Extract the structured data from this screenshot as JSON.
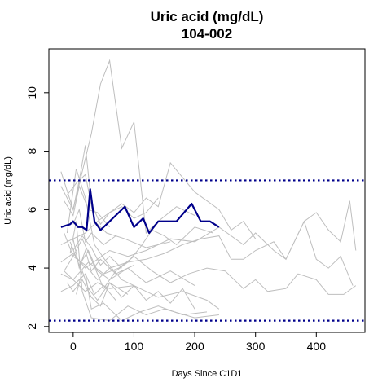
{
  "chart_data": {
    "type": "line",
    "title": "Uric acid (mg/dL)",
    "subtitle": "104-002",
    "xlabel": "Days Since C1D1",
    "ylabel": "Uric acid (mg/dL)",
    "xlim": [
      -40,
      480
    ],
    "ylim": [
      1.8,
      11.5
    ],
    "xticks": [
      0,
      100,
      200,
      300,
      400
    ],
    "yticks": [
      2,
      4,
      6,
      8,
      10
    ],
    "grid": false,
    "reference_lines": [
      {
        "y": 7.0,
        "style": "dotted",
        "color": "#00008b"
      },
      {
        "y": 2.2,
        "style": "dotted",
        "color": "#00008b"
      }
    ],
    "colors": {
      "highlight": "#00008b",
      "background_series": "#bebebe",
      "reference": "#00008b"
    },
    "highlight_series": {
      "x": [
        -20,
        -5,
        0,
        8,
        15,
        22,
        28,
        35,
        45,
        55,
        70,
        85,
        100,
        115,
        125,
        140,
        170,
        195,
        210,
        225,
        240
      ],
      "y": [
        5.4,
        5.5,
        5.6,
        5.4,
        5.4,
        5.3,
        6.7,
        5.6,
        5.3,
        5.5,
        5.8,
        6.1,
        5.4,
        5.7,
        5.2,
        5.6,
        5.6,
        6.2,
        5.6,
        5.6,
        5.4
      ]
    },
    "background_series": [
      {
        "x": [
          -20,
          0,
          30,
          45,
          60,
          80,
          100,
          120,
          140,
          170,
          200
        ],
        "y": [
          7.3,
          6.0,
          8.6,
          10.3,
          11.1,
          8.1,
          9.0,
          5.2,
          5.6,
          6.1,
          5.8
        ]
      },
      {
        "x": [
          -20,
          0,
          20,
          40,
          60,
          80,
          100,
          120,
          140,
          160,
          200,
          240,
          260,
          280,
          300
        ],
        "y": [
          4.8,
          5.0,
          5.2,
          5.6,
          5.9,
          6.2,
          5.9,
          6.4,
          6.1,
          7.6,
          6.6,
          6.0,
          5.3,
          5.6,
          5.0
        ]
      },
      {
        "x": [
          -20,
          0,
          10,
          20,
          30,
          45,
          60,
          80,
          100,
          120,
          140
        ],
        "y": [
          6.8,
          6.0,
          7.0,
          8.2,
          6.2,
          5.5,
          5.9,
          6.1,
          5.7,
          5.9,
          6.4
        ]
      },
      {
        "x": [
          -15,
          0,
          15,
          30,
          50,
          70,
          90,
          110,
          130,
          150,
          170,
          200,
          230
        ],
        "y": [
          5.2,
          4.4,
          5.0,
          4.3,
          3.3,
          3.9,
          4.2,
          4.7,
          5.3,
          5.1,
          4.8,
          5.4,
          5.2
        ]
      },
      {
        "x": [
          -20,
          0,
          20,
          40,
          60,
          90,
          120,
          160,
          200,
          240,
          280,
          300,
          330,
          350,
          380,
          400,
          420,
          440,
          460
        ],
        "y": [
          4.2,
          4.5,
          4.0,
          4.3,
          4.6,
          4.4,
          4.6,
          5.0,
          4.9,
          5.4,
          4.8,
          5.2,
          4.6,
          4.3,
          5.6,
          4.3,
          4.0,
          4.4,
          3.4
        ]
      },
      {
        "x": [
          -15,
          0,
          20,
          40,
          60,
          90,
          120,
          150,
          180,
          210,
          240,
          260,
          280,
          300,
          330,
          350,
          380,
          400,
          420,
          440,
          455,
          465
        ],
        "y": [
          3.9,
          4.4,
          4.1,
          3.6,
          4.0,
          4.2,
          4.3,
          4.5,
          4.8,
          5.0,
          5.1,
          4.3,
          4.3,
          4.6,
          4.9,
          4.3,
          5.6,
          5.9,
          5.3,
          4.9,
          6.3,
          4.6
        ]
      },
      {
        "x": [
          -20,
          0,
          25,
          50,
          75,
          100,
          130,
          160,
          190,
          220,
          250,
          280,
          300,
          320,
          350,
          370,
          400,
          420,
          445,
          465
        ],
        "y": [
          3.8,
          3.6,
          4.2,
          3.8,
          4.0,
          4.4,
          3.9,
          3.5,
          3.8,
          4.0,
          3.9,
          3.3,
          3.6,
          3.2,
          3.3,
          3.8,
          3.6,
          3.1,
          3.1,
          3.4
        ]
      },
      {
        "x": [
          -10,
          0,
          15,
          30,
          45,
          60,
          80,
          100,
          120,
          140,
          160,
          180,
          200
        ],
        "y": [
          3.5,
          3.2,
          3.6,
          3.0,
          2.7,
          3.5,
          3.0,
          3.4,
          2.9,
          3.2,
          2.8,
          3.3,
          2.6
        ]
      },
      {
        "x": [
          -20,
          0,
          20,
          30,
          50,
          80,
          110,
          140,
          180,
          220
        ],
        "y": [
          3.2,
          3.4,
          3.8,
          2.6,
          2.8,
          2.2,
          2.5,
          2.7,
          2.4,
          2.5
        ]
      },
      {
        "x": [
          -5,
          5,
          15,
          30,
          60,
          90,
          120,
          150,
          200,
          240
        ],
        "y": [
          4.5,
          5.6,
          3.2,
          2.3,
          2.2,
          2.7,
          2.4,
          2.6,
          2.3,
          2.4
        ]
      },
      {
        "x": [
          -10,
          5,
          20,
          35,
          55,
          80,
          110
        ],
        "y": [
          5.2,
          7.4,
          6.4,
          4.8,
          4.2,
          3.6,
          3.3
        ]
      },
      {
        "x": [
          -5,
          10,
          25,
          40,
          60,
          90,
          120,
          160,
          200
        ],
        "y": [
          4.9,
          4.1,
          4.6,
          3.9,
          3.6,
          4.0,
          3.5,
          3.9,
          3.4
        ]
      },
      {
        "x": [
          -15,
          0,
          10,
          25,
          40,
          60
        ],
        "y": [
          6.3,
          5.8,
          6.8,
          6.0,
          5.9,
          5.4
        ]
      },
      {
        "x": [
          0,
          10,
          20,
          30,
          45,
          70,
          100
        ],
        "y": [
          5.0,
          4.0,
          4.6,
          3.9,
          4.3,
          3.8,
          4.1
        ]
      },
      {
        "x": [
          5,
          15,
          25,
          40,
          60,
          90
        ],
        "y": [
          3.1,
          3.9,
          3.3,
          2.9,
          3.5,
          3.1
        ]
      },
      {
        "x": [
          -10,
          5,
          20,
          35,
          55,
          85,
          120,
          160
        ],
        "y": [
          6.5,
          6.9,
          7.2,
          5.6,
          5.2,
          5.0,
          4.7,
          4.9
        ]
      },
      {
        "x": [
          0,
          15,
          30,
          45,
          60,
          80
        ],
        "y": [
          4.6,
          5.1,
          4.7,
          4.1,
          4.4,
          4.0
        ]
      },
      {
        "x": [
          -15,
          0,
          20,
          40,
          60,
          100,
          140,
          180,
          220,
          240
        ],
        "y": [
          3.9,
          3.6,
          3.2,
          3.5,
          3.3,
          3.4,
          3.0,
          3.2,
          2.9,
          2.6
        ]
      },
      {
        "x": [
          0,
          10,
          20,
          30,
          50,
          70
        ],
        "y": [
          5.5,
          6.0,
          4.9,
          5.2,
          4.8,
          5.1
        ]
      },
      {
        "x": [
          5,
          20,
          35,
          50,
          70
        ],
        "y": [
          3.5,
          3.8,
          3.1,
          3.4,
          2.9
        ]
      }
    ]
  }
}
